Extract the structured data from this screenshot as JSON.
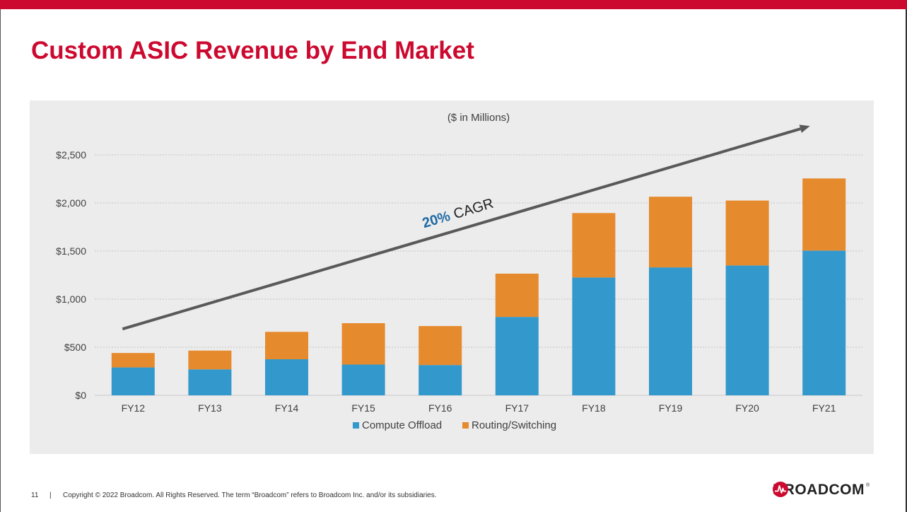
{
  "slide": {
    "title": "Custom ASIC Revenue by End Market",
    "page_number": "11",
    "separator": "|",
    "copyright": "Copyright © 2022 Broadcom.  All Rights Reserved. The term “Broadcom” refers to Broadcom Inc. and/or its subsidiaries.",
    "logo_text": "BROADCOM",
    "logo_tm": "®"
  },
  "colors": {
    "brand_red": "#cc092f",
    "compute": "#3399cc",
    "routing": "#e68a2e",
    "arrow": "#595959",
    "cagr_blue": "#1f6aa5"
  },
  "chart_data": {
    "type": "bar",
    "stacked": true,
    "subtitle": "($ in Millions)",
    "categories": [
      "FY12",
      "FY13",
      "FY14",
      "FY15",
      "FY16",
      "FY17",
      "FY18",
      "FY19",
      "FY20",
      "FY21"
    ],
    "series": [
      {
        "name": "Compute Offload",
        "color": "#3399cc",
        "values": [
          290,
          270,
          375,
          320,
          315,
          815,
          1225,
          1330,
          1350,
          1505
        ]
      },
      {
        "name": "Routing/Switching",
        "color": "#e68a2e",
        "values": [
          150,
          195,
          285,
          430,
          405,
          450,
          670,
          735,
          675,
          750
        ]
      }
    ],
    "ylim": [
      0,
      2500
    ],
    "y_ticks": [
      0,
      500,
      1000,
      1500,
      2000,
      2500
    ],
    "y_tick_labels": [
      "$0",
      "$500",
      "$1,000",
      "$1,500",
      "$2,000",
      "$2,500"
    ],
    "grid": true,
    "legend": "bottom",
    "annotation": {
      "value": "20%",
      "label": "CAGR",
      "arrow_from": {
        "category": "FY12",
        "value": 690
      },
      "arrow_to": {
        "category": "FY21",
        "value": 2800
      }
    }
  }
}
